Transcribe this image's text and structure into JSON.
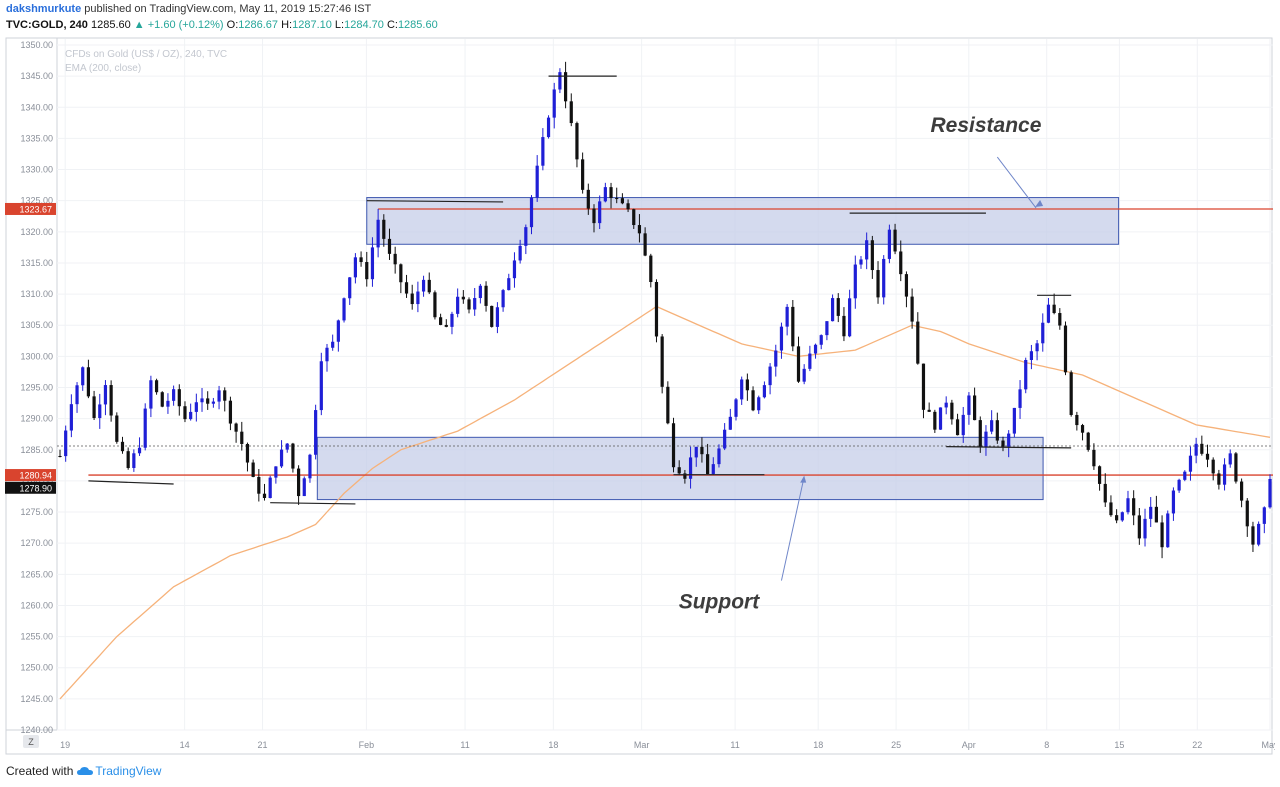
{
  "header": {
    "author": "dakshmurkute",
    "published": "published on TradingView.com, May 11, 2019 15:27:46 IST",
    "symbol": "TVC:GOLD, 240",
    "last": "1285.60",
    "change": "▲ +1.60 (+0.12%)",
    "open_label": "O:",
    "open": "1286.67",
    "high_label": "H:",
    "high": "1287.10",
    "low_label": "L:",
    "low": "1284.70",
    "close_label": "C:",
    "close": "1285.60"
  },
  "legend": {
    "line1": "CFDs on Gold (US$ / OZ), 240, TVC",
    "line2": "EMA (200, close)"
  },
  "footer": {
    "created_with": "Created with",
    "brand": "TradingView"
  },
  "timezone_button": "Z",
  "colors": {
    "up": "#1f1fd6",
    "down": "#111111",
    "ema": "#f6b27a",
    "level": "#d9442e",
    "zone_fill": "#c5cde8",
    "zone_stroke": "#3f58b0",
    "badge_red": "#d9442e",
    "badge_black": "#111111"
  },
  "chart_data": {
    "type": "candlestick",
    "y_range": [
      1240,
      1350
    ],
    "y_ticks": [
      "1350.00",
      "1345.00",
      "1340.00",
      "1335.00",
      "1330.00",
      "1325.00",
      "1320.00",
      "1315.00",
      "1310.00",
      "1305.00",
      "1300.00",
      "1295.00",
      "1290.00",
      "1285.00",
      "1280.00",
      "1275.00",
      "1270.00",
      "1265.00",
      "1260.00",
      "1255.00",
      "1250.00",
      "1245.00",
      "1240.00"
    ],
    "x_ticks": [
      "19",
      "14",
      "21",
      "Feb",
      "11",
      "18",
      "Mar",
      "11",
      "18",
      "25",
      "Apr",
      "8",
      "15",
      "22",
      "May"
    ],
    "path_key": [
      [
        0,
        1284
      ],
      [
        2,
        1293
      ],
      [
        4,
        1298
      ],
      [
        6,
        1290
      ],
      [
        8,
        1296
      ],
      [
        10,
        1286
      ],
      [
        12,
        1282
      ],
      [
        14,
        1286
      ],
      [
        16,
        1296
      ],
      [
        18,
        1292
      ],
      [
        20,
        1294
      ],
      [
        22,
        1290
      ],
      [
        24,
        1293
      ],
      [
        26,
        1292
      ],
      [
        28,
        1295
      ],
      [
        30,
        1290
      ],
      [
        32,
        1286
      ],
      [
        34,
        1280
      ],
      [
        36,
        1277
      ],
      [
        38,
        1283
      ],
      [
        40,
        1286
      ],
      [
        42,
        1278
      ],
      [
        44,
        1284
      ],
      [
        46,
        1300
      ],
      [
        48,
        1302
      ],
      [
        50,
        1310
      ],
      [
        52,
        1316
      ],
      [
        54,
        1313
      ],
      [
        56,
        1322
      ],
      [
        58,
        1316
      ],
      [
        60,
        1312
      ],
      [
        62,
        1308
      ],
      [
        64,
        1313
      ],
      [
        66,
        1306
      ],
      [
        68,
        1304
      ],
      [
        70,
        1310
      ],
      [
        72,
        1307
      ],
      [
        74,
        1312
      ],
      [
        76,
        1305
      ],
      [
        78,
        1310
      ],
      [
        80,
        1316
      ],
      [
        82,
        1321
      ],
      [
        84,
        1330
      ],
      [
        86,
        1339
      ],
      [
        88,
        1346
      ],
      [
        90,
        1337
      ],
      [
        92,
        1326
      ],
      [
        94,
        1322
      ],
      [
        96,
        1327
      ],
      [
        98,
        1325
      ],
      [
        100,
        1323
      ],
      [
        102,
        1320
      ],
      [
        104,
        1312
      ],
      [
        106,
        1295
      ],
      [
        108,
        1283
      ],
      [
        110,
        1281
      ],
      [
        112,
        1286
      ],
      [
        114,
        1281
      ],
      [
        116,
        1285
      ],
      [
        118,
        1290
      ],
      [
        120,
        1297
      ],
      [
        122,
        1292
      ],
      [
        124,
        1296
      ],
      [
        126,
        1301
      ],
      [
        128,
        1308
      ],
      [
        130,
        1296
      ],
      [
        132,
        1300
      ],
      [
        134,
        1303
      ],
      [
        136,
        1309
      ],
      [
        138,
        1304
      ],
      [
        140,
        1314
      ],
      [
        142,
        1318
      ],
      [
        144,
        1310
      ],
      [
        146,
        1321
      ],
      [
        148,
        1314
      ],
      [
        150,
        1306
      ],
      [
        152,
        1292
      ],
      [
        154,
        1289
      ],
      [
        156,
        1293
      ],
      [
        158,
        1288
      ],
      [
        160,
        1293
      ],
      [
        162,
        1286
      ],
      [
        164,
        1289
      ],
      [
        166,
        1285
      ],
      [
        168,
        1291
      ],
      [
        170,
        1299
      ],
      [
        172,
        1302
      ],
      [
        174,
        1308
      ],
      [
        176,
        1305
      ],
      [
        178,
        1291
      ],
      [
        180,
        1288
      ],
      [
        182,
        1283
      ],
      [
        184,
        1276
      ],
      [
        186,
        1273
      ],
      [
        188,
        1277
      ],
      [
        190,
        1271
      ],
      [
        192,
        1276
      ],
      [
        194,
        1270
      ],
      [
        196,
        1278
      ],
      [
        198,
        1281
      ],
      [
        200,
        1286
      ],
      [
        202,
        1284
      ],
      [
        204,
        1280
      ],
      [
        206,
        1284
      ],
      [
        208,
        1277
      ],
      [
        210,
        1270
      ],
      [
        212,
        1275
      ],
      [
        213,
        1281
      ]
    ],
    "ema_key": [
      [
        0,
        1245
      ],
      [
        10,
        1255
      ],
      [
        20,
        1263
      ],
      [
        30,
        1268
      ],
      [
        40,
        1271
      ],
      [
        45,
        1273
      ],
      [
        50,
        1278
      ],
      [
        55,
        1282
      ],
      [
        60,
        1285
      ],
      [
        70,
        1288
      ],
      [
        80,
        1293
      ],
      [
        90,
        1299
      ],
      [
        100,
        1305
      ],
      [
        105,
        1308
      ],
      [
        110,
        1306
      ],
      [
        115,
        1304
      ],
      [
        120,
        1302
      ],
      [
        130,
        1300
      ],
      [
        140,
        1301
      ],
      [
        150,
        1305
      ],
      [
        155,
        1304
      ],
      [
        160,
        1302
      ],
      [
        170,
        1299
      ],
      [
        180,
        1297
      ],
      [
        190,
        1293
      ],
      [
        200,
        1289
      ],
      [
        213,
        1287
      ]
    ],
    "current_price": 1285.6,
    "resistance": {
      "price": 1323.67,
      "zone": [
        1318,
        1325.5
      ],
      "label": "Resistance"
    },
    "support": {
      "price": 1280.94,
      "zone": [
        1277,
        1287
      ],
      "label": "Support"
    },
    "price_badges": [
      {
        "price": 1323.67,
        "label": "1323.67",
        "color": "red"
      },
      {
        "price": 1280.94,
        "label": "1280.94",
        "color": "red"
      },
      {
        "price": 1278.9,
        "label": "1278.90",
        "color": "black"
      }
    ],
    "pivot_lines": [
      {
        "x1": 5,
        "x2": 20,
        "y1": 1280,
        "y2": 1279.5
      },
      {
        "x1": 37,
        "x2": 52,
        "y1": 1276.5,
        "y2": 1276.3
      },
      {
        "x1": 54,
        "x2": 78,
        "y1": 1325,
        "y2": 1324.8
      },
      {
        "x1": 86,
        "x2": 98,
        "y1": 1345,
        "y2": 1345
      },
      {
        "x1": 108,
        "x2": 124,
        "y1": 1281,
        "y2": 1281
      },
      {
        "x1": 139,
        "x2": 163,
        "y1": 1323,
        "y2": 1323
      },
      {
        "x1": 156,
        "x2": 178,
        "y1": 1285.5,
        "y2": 1285.3
      },
      {
        "x1": 172,
        "x2": 178,
        "y1": 1309.8,
        "y2": 1309.8
      }
    ]
  }
}
